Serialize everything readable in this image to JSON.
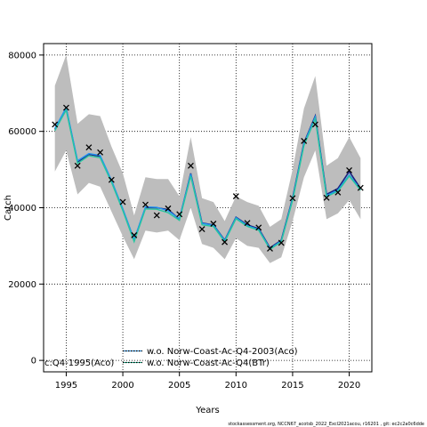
{
  "chart_data": {
    "type": "line",
    "xlabel": "Years",
    "ylabel": "Catch",
    "xlim": [
      1993,
      2022
    ],
    "ylim": [
      -3000,
      83000
    ],
    "xticks": [
      1995,
      2000,
      2005,
      2010,
      2015,
      2020
    ],
    "yticks": [
      0,
      20000,
      40000,
      60000,
      80000
    ],
    "grid": true,
    "years": [
      1994,
      1995,
      1996,
      1997,
      1998,
      1999,
      2000,
      2001,
      2002,
      2003,
      2004,
      2005,
      2006,
      2007,
      2008,
      2009,
      2010,
      2011,
      2012,
      2013,
      2014,
      2015,
      2016,
      2017,
      2018,
      2019,
      2020,
      2021
    ],
    "band": {
      "upper": [
        72000,
        80000,
        62000,
        64500,
        64000,
        56000,
        49000,
        38000,
        48000,
        47500,
        47500,
        43000,
        58500,
        42500,
        41500,
        36500,
        43000,
        41500,
        40500,
        35000,
        37000,
        50000,
        66000,
        74500,
        51000,
        53000,
        58500,
        53000
      ],
      "lower": [
        49500,
        55000,
        43500,
        46500,
        45500,
        39000,
        32500,
        26500,
        34000,
        33500,
        34000,
        31500,
        40000,
        30500,
        29500,
        26500,
        32000,
        30000,
        29500,
        25500,
        27000,
        36500,
        48000,
        55000,
        37000,
        38500,
        42000,
        37000
      ]
    },
    "series": [
      {
        "name": "",
        "color": "#1a237e",
        "values": [
          60500,
          66000,
          52000,
          54000,
          53500,
          47000,
          39500,
          31500,
          40000,
          40000,
          39500,
          37000,
          49000,
          36000,
          35500,
          31500,
          37500,
          35500,
          34500,
          29500,
          31500,
          42500,
          57000,
          64000,
          43500,
          45000,
          49500,
          45000
        ]
      },
      {
        "name": "w.o. Norw-Coast-Ac-Q4-2003(Aco)",
        "color": "#2196f3",
        "values": [
          60800,
          66200,
          52300,
          54200,
          53700,
          47200,
          39700,
          31600,
          40200,
          40100,
          39200,
          37100,
          48800,
          35900,
          35400,
          31400,
          37400,
          35300,
          34300,
          29300,
          31300,
          42300,
          56800,
          63800,
          43200,
          44600,
          48600,
          44800
        ]
      },
      {
        "name": "w.o. Norw-Coast-Ac-Q4(BTr)",
        "color": "#26c6a0",
        "values": [
          60200,
          65600,
          51600,
          53600,
          53100,
          46700,
          39200,
          31100,
          39700,
          39600,
          38700,
          36700,
          48300,
          35500,
          35100,
          31100,
          37100,
          35100,
          34100,
          29100,
          31100,
          41900,
          56300,
          63300,
          42900,
          44300,
          48300,
          44600
        ]
      }
    ],
    "observed": {
      "years": [
        1994,
        1995,
        1996,
        1997,
        1998,
        1999,
        2000,
        2001,
        2002,
        2003,
        2004,
        2005,
        2006,
        2007,
        2008,
        2009,
        2010,
        2011,
        2012,
        2013,
        2014,
        2015,
        2016,
        2017,
        2018,
        2019,
        2020,
        2021
      ],
      "values": [
        61800,
        66200,
        51000,
        55800,
        54500,
        47300,
        41500,
        32800,
        40800,
        38000,
        39800,
        38300,
        51000,
        34400,
        35800,
        31000,
        43000,
        36000,
        34800,
        29300,
        30800,
        42500,
        57500,
        61800,
        42600,
        44000,
        49800,
        45200
      ]
    },
    "legend": {
      "partial_label": "c:Q4-1995(Aco)",
      "entries": [
        {
          "label": "w.o. Norw-Coast-Ac-Q4-2003(Aco)",
          "color": "#2196f3",
          "style": "dotted"
        },
        {
          "label": "w.o. Norw-Coast-Ac-Q4(BTr)",
          "color": "#26c6a0",
          "style": "dotted"
        }
      ]
    }
  },
  "footer": "stockassessment.org, NCCN67_acotsb_2022_Excl2021acou, r16201 , git: ec2c2a0c6dde"
}
